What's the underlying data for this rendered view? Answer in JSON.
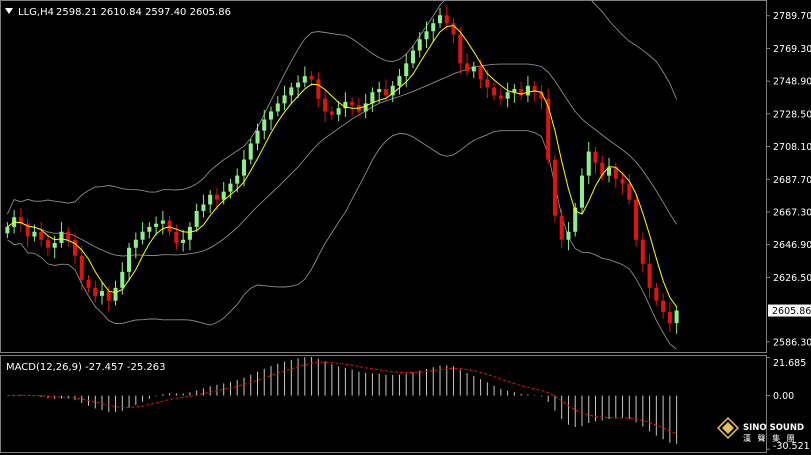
{
  "header": {
    "symbol": "LLG,H4",
    "ohlc": "2598.21 2610.84 2597.40 2605.86"
  },
  "macd_header": "MACD(12,26,9) -27.457 -25.263",
  "watermark": {
    "brand": "SINO SOUND",
    "chinese": "漢 聲 集 團"
  },
  "colors": {
    "background": "#000000",
    "bull_candle": "#90ee90",
    "bear_candle": "#dc1414",
    "ma_line": "#ffff00",
    "bollinger": "#8c8c8c",
    "macd_hist": "#c8c8c8",
    "macd_signal": "#dc1414",
    "current_price_box": "#ffffff"
  },
  "chart_data": [
    {
      "type": "candlestick",
      "panel": "price",
      "ylim": [
        2580,
        2797
      ],
      "y_ticks": [
        "2789.70",
        "2769.30",
        "2748.90",
        "2728.50",
        "2708.10",
        "2687.70",
        "2667.30",
        "2646.90",
        "2626.50",
        "2605.86",
        "2586.30"
      ],
      "current_price": "2605.86",
      "indicators": [
        "Bollinger Bands",
        "Moving Average"
      ],
      "closes": [
        2658,
        2664,
        2660,
        2652,
        2655,
        2650,
        2645,
        2648,
        2655,
        2650,
        2640,
        2625,
        2620,
        2615,
        2618,
        2612,
        2620,
        2630,
        2645,
        2650,
        2655,
        2658,
        2660,
        2662,
        2655,
        2648,
        2650,
        2658,
        2668,
        2672,
        2678,
        2675,
        2680,
        2685,
        2690,
        2700,
        2710,
        2718,
        2725,
        2730,
        2735,
        2740,
        2745,
        2748,
        2752,
        2750,
        2738,
        2730,
        2728,
        2732,
        2736,
        2734,
        2730,
        2735,
        2742,
        2744,
        2740,
        2746,
        2752,
        2760,
        2768,
        2775,
        2780,
        2785,
        2790,
        2785,
        2778,
        2760,
        2755,
        2758,
        2750,
        2745,
        2740,
        2738,
        2742,
        2744,
        2740,
        2746,
        2742,
        2738,
        2700,
        2665,
        2650,
        2655,
        2670,
        2690,
        2705,
        2698,
        2690,
        2695,
        2688,
        2685,
        2675,
        2650,
        2635,
        2620,
        2612,
        2605,
        2598,
        2605.86
      ]
    },
    {
      "type": "bar",
      "panel": "MACD",
      "title": "MACD(12,26,9)",
      "ylim": [
        -31,
        22
      ],
      "y_ticks": [
        "21.685",
        "0.00",
        "-30.521"
      ],
      "macd_last": -27.457,
      "signal_last": -25.263
    }
  ]
}
